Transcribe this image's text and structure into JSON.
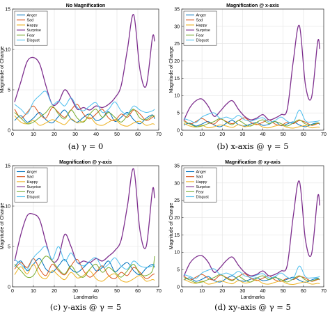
{
  "chart_data": [
    {
      "type": "line",
      "title": "No Magnification",
      "caption": "(a)  γ = 0",
      "xlabel": "",
      "ylabel": "Magnitude of Change",
      "xlim": [
        0,
        70
      ],
      "ylim": [
        0,
        15
      ],
      "xticks": [
        0,
        10,
        20,
        30,
        40,
        50,
        60,
        70
      ],
      "yticks": [
        0,
        5,
        10,
        15
      ],
      "grid": true,
      "legend": "top-left",
      "x": [
        1,
        4,
        7,
        10,
        13,
        16,
        19,
        22,
        25,
        28,
        31,
        34,
        37,
        40,
        43,
        46,
        49,
        52,
        55,
        58,
        61,
        64,
        67,
        68
      ],
      "series": [
        {
          "name": "Anger",
          "color": "#0072bd",
          "values": [
            1.2,
            1.8,
            1.0,
            1.5,
            2.2,
            1.3,
            0.9,
            1.7,
            2.5,
            1.4,
            1.0,
            1.6,
            2.0,
            1.2,
            1.5,
            2.3,
            1.1,
            1.6,
            2.2,
            1.3,
            0.8,
            1.5,
            1.9,
            1.4
          ]
        },
        {
          "name": "Sad",
          "color": "#d95319",
          "values": [
            2.6,
            1.5,
            2.2,
            3.0,
            2.0,
            1.5,
            2.8,
            2.2,
            1.6,
            2.5,
            3.2,
            2.0,
            1.4,
            2.0,
            2.6,
            1.5,
            1.2,
            2.0,
            1.6,
            2.5,
            2.0,
            1.2,
            1.6,
            1.8
          ]
        },
        {
          "name": "Happy",
          "color": "#edb120",
          "values": [
            1.8,
            1.0,
            0.8,
            1.2,
            0.6,
            0.9,
            1.3,
            1.0,
            0.7,
            1.4,
            0.9,
            1.1,
            1.6,
            0.8,
            0.6,
            1.0,
            1.3,
            0.7,
            0.5,
            0.9,
            1.1,
            0.6,
            0.8,
            0.7
          ]
        },
        {
          "name": "Surprise",
          "color": "#7e2f8e",
          "values": [
            3.5,
            6.0,
            8.5,
            9.0,
            8.2,
            5.5,
            3.2,
            3.5,
            5.0,
            4.0,
            2.6,
            2.8,
            2.5,
            3.0,
            2.8,
            3.2,
            4.0,
            5.5,
            10.0,
            14.3,
            7.5,
            5.5,
            11.5,
            11.0
          ]
        },
        {
          "name": "Fear",
          "color": "#77ac30",
          "values": [
            2.2,
            1.5,
            0.8,
            1.0,
            1.6,
            2.2,
            3.0,
            2.0,
            1.4,
            2.5,
            1.5,
            1.0,
            2.0,
            2.6,
            1.6,
            2.2,
            1.6,
            1.0,
            1.8,
            2.6,
            1.5,
            1.3,
            1.8,
            1.6
          ]
        },
        {
          "name": "Disgust",
          "color": "#4dbeee",
          "values": [
            3.2,
            2.6,
            2.0,
            3.5,
            4.3,
            4.8,
            3.2,
            3.6,
            3.0,
            4.0,
            2.8,
            2.4,
            3.0,
            3.4,
            2.2,
            2.6,
            3.5,
            2.4,
            2.0,
            3.0,
            2.5,
            2.2,
            2.4,
            2.6
          ]
        }
      ]
    },
    {
      "type": "line",
      "title": "Magnification @ x-axis",
      "caption": "(b)  x-axis @ γ = 5",
      "xlabel": "",
      "ylabel": "Magnitude of Change",
      "xlim": [
        0,
        70
      ],
      "ylim": [
        0,
        35
      ],
      "xticks": [
        0,
        10,
        20,
        30,
        40,
        50,
        60,
        70
      ],
      "yticks": [
        0,
        5,
        10,
        15,
        20,
        25,
        30,
        35
      ],
      "grid": true,
      "legend": "top-left",
      "x": [
        1,
        4,
        7,
        10,
        13,
        16,
        19,
        22,
        25,
        28,
        31,
        34,
        37,
        40,
        43,
        46,
        49,
        52,
        55,
        58,
        61,
        64,
        67,
        68
      ],
      "series": [
        {
          "name": "Anger",
          "color": "#0072bd",
          "values": [
            1.5,
            2.0,
            1.2,
            1.8,
            2.5,
            1.5,
            1.0,
            2.0,
            2.8,
            1.6,
            1.2,
            1.8,
            2.2,
            1.4,
            1.7,
            2.5,
            1.3,
            1.8,
            2.4,
            1.5,
            1.0,
            1.7,
            2.1,
            1.6
          ]
        },
        {
          "name": "Sad",
          "color": "#d95319",
          "values": [
            3.0,
            1.8,
            2.5,
            3.4,
            2.3,
            1.8,
            3.2,
            2.5,
            1.9,
            2.8,
            3.6,
            2.3,
            1.6,
            2.3,
            3.0,
            1.8,
            1.4,
            2.3,
            1.9,
            2.8,
            2.3,
            1.4,
            1.9,
            2.0
          ]
        },
        {
          "name": "Happy",
          "color": "#edb120",
          "values": [
            2.0,
            1.2,
            0.9,
            1.4,
            0.7,
            1.0,
            1.5,
            1.2,
            0.8,
            1.6,
            1.0,
            1.3,
            1.8,
            0.9,
            0.7,
            1.2,
            1.5,
            0.8,
            0.6,
            1.0,
            1.3,
            0.7,
            0.9,
            0.8
          ]
        },
        {
          "name": "Surprise",
          "color": "#7e2f8e",
          "values": [
            2.8,
            6.5,
            8.5,
            9.0,
            7.0,
            4.0,
            5.5,
            7.5,
            8.5,
            6.0,
            4.0,
            3.0,
            3.5,
            4.5,
            3.0,
            3.5,
            4.5,
            6.0,
            20.0,
            30.2,
            13.0,
            9.5,
            25.5,
            23.5
          ]
        },
        {
          "name": "Fear",
          "color": "#77ac30",
          "values": [
            2.5,
            1.8,
            1.0,
            1.2,
            1.9,
            2.5,
            3.4,
            2.3,
            1.6,
            2.8,
            1.8,
            1.2,
            2.3,
            3.0,
            1.9,
            2.5,
            1.9,
            1.2,
            2.1,
            3.0,
            1.8,
            1.5,
            2.1,
            1.9
          ]
        },
        {
          "name": "Disgust",
          "color": "#4dbeee",
          "values": [
            3.4,
            2.8,
            2.2,
            3.8,
            4.6,
            5.0,
            3.4,
            3.8,
            3.2,
            4.3,
            3.0,
            2.6,
            3.2,
            3.6,
            2.4,
            2.8,
            3.8,
            2.6,
            2.2,
            5.8,
            2.7,
            2.4,
            2.6,
            2.8
          ]
        }
      ]
    },
    {
      "type": "line",
      "title": "Magnification @ y-axis",
      "caption": "(c)  y-axis @ γ = 5",
      "xlabel": "Landmarks",
      "ylabel": "Magnitude of Change",
      "xlim": [
        0,
        70
      ],
      "ylim": [
        0,
        15
      ],
      "xticks": [
        0,
        10,
        20,
        30,
        40,
        50,
        60,
        70
      ],
      "yticks": [
        0,
        5,
        10,
        15
      ],
      "grid": true,
      "legend": "top-left",
      "x": [
        1,
        4,
        7,
        10,
        13,
        16,
        19,
        22,
        25,
        28,
        31,
        34,
        37,
        40,
        43,
        46,
        49,
        52,
        55,
        58,
        61,
        64,
        67,
        68
      ],
      "series": [
        {
          "name": "Anger",
          "color": "#0072bd",
          "values": [
            2.5,
            3.2,
            2.0,
            2.8,
            3.5,
            2.2,
            1.8,
            2.6,
            3.4,
            2.2,
            1.8,
            2.4,
            3.0,
            2.0,
            2.4,
            3.2,
            1.9,
            2.5,
            3.0,
            2.0,
            1.5,
            2.3,
            2.8,
            2.4
          ]
        },
        {
          "name": "Sad",
          "color": "#d95319",
          "values": [
            2.2,
            3.0,
            2.4,
            3.5,
            2.2,
            1.4,
            2.8,
            2.0,
            1.5,
            2.6,
            3.4,
            2.0,
            1.2,
            1.8,
            2.6,
            1.4,
            1.0,
            1.8,
            1.4,
            2.4,
            1.8,
            1.0,
            1.5,
            1.6
          ]
        },
        {
          "name": "Happy",
          "color": "#edb120",
          "values": [
            1.5,
            2.5,
            1.6,
            2.8,
            1.4,
            1.0,
            2.0,
            1.4,
            0.9,
            1.8,
            1.1,
            1.4,
            2.0,
            1.0,
            0.7,
            1.3,
            1.6,
            0.8,
            0.6,
            1.0,
            1.4,
            0.7,
            0.9,
            0.8
          ]
        },
        {
          "name": "Surprise",
          "color": "#7e2f8e",
          "values": [
            3.2,
            6.5,
            8.8,
            9.0,
            8.3,
            5.5,
            3.2,
            3.6,
            6.5,
            5.0,
            3.0,
            3.2,
            3.0,
            3.5,
            3.2,
            3.8,
            4.5,
            5.8,
            10.0,
            14.6,
            7.0,
            5.0,
            12.0,
            11.0
          ]
        },
        {
          "name": "Fear",
          "color": "#77ac30",
          "values": [
            2.8,
            2.0,
            1.2,
            1.4,
            2.8,
            3.8,
            3.2,
            2.2,
            1.6,
            2.6,
            1.6,
            1.2,
            2.2,
            2.8,
            1.8,
            2.4,
            1.8,
            1.2,
            2.0,
            2.8,
            1.6,
            1.4,
            2.0,
            3.8
          ]
        },
        {
          "name": "Disgust",
          "color": "#4dbeee",
          "values": [
            3.4,
            2.8,
            2.2,
            3.6,
            4.4,
            5.0,
            3.4,
            5.0,
            3.2,
            4.2,
            3.0,
            2.6,
            3.2,
            3.6,
            2.4,
            2.8,
            3.6,
            2.6,
            2.2,
            3.2,
            2.6,
            2.4,
            2.6,
            2.8
          ]
        }
      ]
    },
    {
      "type": "line",
      "title": "Magnification @ xy-axis",
      "caption": "(d)  xy-axis @ γ = 5",
      "xlabel": "Landmarks",
      "ylabel": "Magnitude of Change",
      "xlim": [
        0,
        70
      ],
      "ylim": [
        0,
        35
      ],
      "xticks": [
        0,
        10,
        20,
        30,
        40,
        50,
        60,
        70
      ],
      "yticks": [
        0,
        5,
        10,
        15,
        20,
        25,
        30,
        35
      ],
      "grid": true,
      "legend": "top-left",
      "x": [
        1,
        4,
        7,
        10,
        13,
        16,
        19,
        22,
        25,
        28,
        31,
        34,
        37,
        40,
        43,
        46,
        49,
        52,
        55,
        58,
        61,
        64,
        67,
        68
      ],
      "series": [
        {
          "name": "Anger",
          "color": "#0072bd",
          "values": [
            2.0,
            2.6,
            1.6,
            2.2,
            3.0,
            1.8,
            1.4,
            2.4,
            3.2,
            2.0,
            1.6,
            2.2,
            2.6,
            1.8,
            2.1,
            2.9,
            1.7,
            2.2,
            2.8,
            1.9,
            1.3,
            2.0,
            2.5,
            2.0
          ]
        },
        {
          "name": "Sad",
          "color": "#d95319",
          "values": [
            3.2,
            2.0,
            2.8,
            3.6,
            2.5,
            2.0,
            3.4,
            2.7,
            2.0,
            3.0,
            3.8,
            2.5,
            1.8,
            2.5,
            3.2,
            2.0,
            1.6,
            2.5,
            2.1,
            3.0,
            2.5,
            1.6,
            2.1,
            2.2
          ]
        },
        {
          "name": "Happy",
          "color": "#edb120",
          "values": [
            2.2,
            1.4,
            1.0,
            1.6,
            0.8,
            1.1,
            1.7,
            1.3,
            0.9,
            1.8,
            1.1,
            1.4,
            2.0,
            1.0,
            0.8,
            1.3,
            1.7,
            0.9,
            0.7,
            1.1,
            1.4,
            0.8,
            1.0,
            0.9
          ]
        },
        {
          "name": "Surprise",
          "color": "#7e2f8e",
          "values": [
            3.0,
            6.8,
            8.6,
            9.0,
            7.2,
            4.2,
            5.6,
            7.6,
            8.6,
            6.2,
            4.2,
            3.2,
            3.6,
            4.6,
            3.2,
            3.6,
            4.6,
            6.2,
            20.5,
            30.5,
            13.5,
            9.5,
            26.0,
            23.5
          ]
        },
        {
          "name": "Fear",
          "color": "#77ac30",
          "values": [
            2.7,
            2.0,
            1.2,
            1.4,
            2.1,
            2.7,
            3.6,
            2.5,
            1.8,
            3.0,
            2.0,
            1.4,
            2.5,
            3.2,
            2.1,
            2.7,
            2.1,
            1.4,
            2.3,
            3.2,
            2.0,
            1.7,
            2.3,
            2.1
          ]
        },
        {
          "name": "Disgust",
          "color": "#4dbeee",
          "values": [
            3.6,
            3.0,
            2.4,
            4.0,
            4.8,
            5.2,
            3.6,
            4.0,
            3.4,
            4.5,
            3.2,
            2.8,
            3.4,
            3.8,
            2.6,
            3.0,
            4.0,
            2.8,
            2.4,
            6.0,
            2.9,
            2.6,
            2.8,
            3.0
          ]
        }
      ]
    }
  ]
}
